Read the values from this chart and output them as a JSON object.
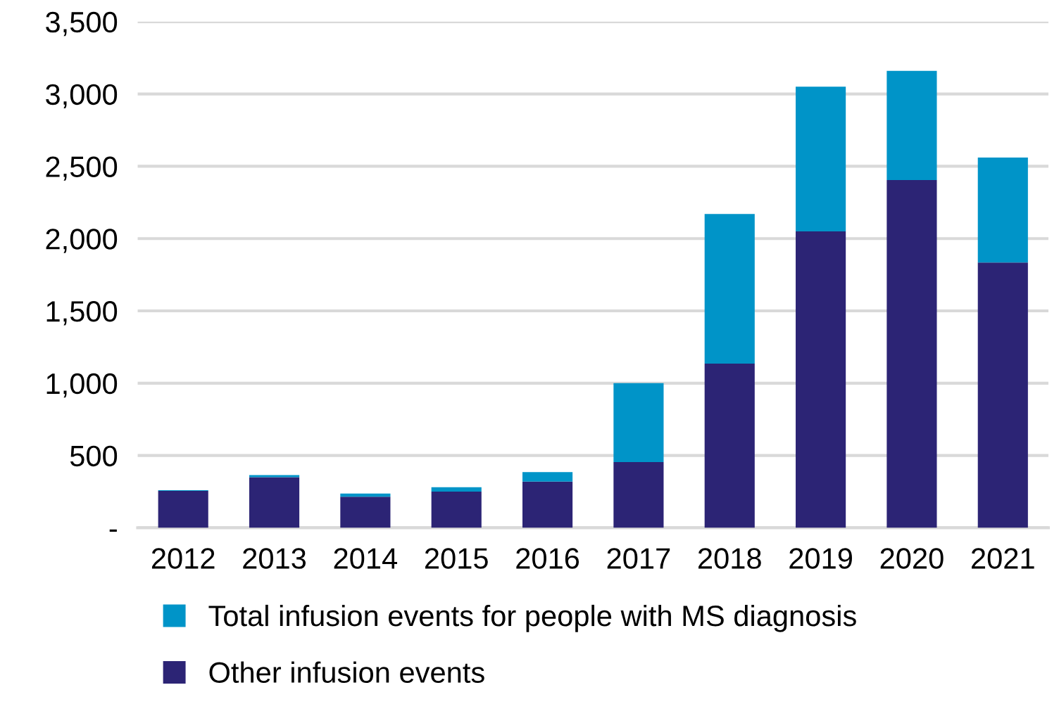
{
  "chart_data": {
    "type": "bar",
    "stacked": true,
    "categories": [
      "2012",
      "2013",
      "2014",
      "2015",
      "2016",
      "2017",
      "2018",
      "2019",
      "2020",
      "2021"
    ],
    "series": [
      {
        "name": "Other infusion events",
        "color": "#2c2475",
        "values": [
          255,
          350,
          215,
          250,
          320,
          455,
          1135,
          2050,
          2405,
          1835
        ]
      },
      {
        "name": "Total infusion events for people with MS diagnosis",
        "color": "#0094c8",
        "values": [
          5,
          15,
          22,
          30,
          65,
          545,
          1035,
          1000,
          755,
          725
        ]
      }
    ],
    "ylim": [
      0,
      3500
    ],
    "yticks": [
      {
        "value": 0,
        "label": "-"
      },
      {
        "value": 500,
        "label": "500"
      },
      {
        "value": 1000,
        "label": "1,000"
      },
      {
        "value": 1500,
        "label": "1,500"
      },
      {
        "value": 2000,
        "label": "2,000"
      },
      {
        "value": 2500,
        "label": "2,500"
      },
      {
        "value": 3000,
        "label": "3,000"
      },
      {
        "value": 3500,
        "label": "3,500"
      }
    ],
    "grid": "y",
    "legend": "bottom"
  }
}
